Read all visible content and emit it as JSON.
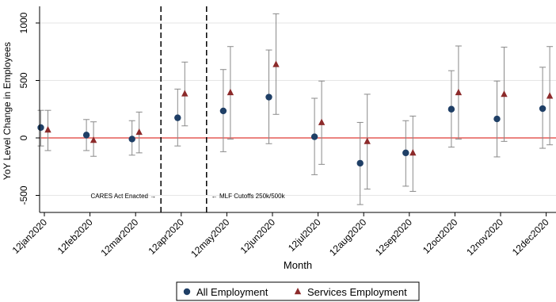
{
  "chart_data": {
    "type": "scatter",
    "xlabel": "Month",
    "ylabel": "YoY Level Change in Employees",
    "categories": [
      "12jan2020",
      "12feb2020",
      "12mar2020",
      "12apr2020",
      "12may2020",
      "12jun2020",
      "12jul2020",
      "12aug2020",
      "12sep2020",
      "12oct2020",
      "12nov2020",
      "12dec2020"
    ],
    "yticks": [
      1000,
      500,
      0,
      -500
    ],
    "ytick_labels": [
      "1000",
      "500",
      "0",
      "-500"
    ],
    "ylim": [
      -600,
      1130
    ],
    "grid": true,
    "legend_position": "bottom",
    "zero_line": {
      "value": 0,
      "color": "#e8726e"
    },
    "series": [
      {
        "name": "All Employment",
        "marker": "circle",
        "color": "#1f3f66",
        "values": [
          90,
          25,
          -10,
          175,
          235,
          355,
          10,
          -220,
          -130,
          250,
          165,
          255
        ],
        "ci_low": [
          -70,
          -110,
          -150,
          -70,
          -120,
          -50,
          -320,
          -580,
          -420,
          -80,
          -165,
          -90
        ],
        "ci_high": [
          240,
          160,
          150,
          425,
          595,
          765,
          345,
          135,
          150,
          585,
          495,
          615
        ]
      },
      {
        "name": "Services Employment",
        "marker": "triangle",
        "color": "#8c2a2a",
        "values": [
          70,
          -20,
          50,
          385,
          395,
          640,
          135,
          -30,
          -130,
          395,
          380,
          365
        ],
        "ci_low": [
          -110,
          -160,
          -130,
          105,
          -10,
          205,
          -230,
          -445,
          -465,
          -10,
          -30,
          -60
        ],
        "ci_high": [
          240,
          140,
          225,
          660,
          795,
          1080,
          495,
          380,
          190,
          800,
          790,
          795
        ]
      }
    ],
    "vertical_lines": [
      {
        "after_category": "12mar2020",
        "label": "CARES Act Enacted →",
        "label_side": "left"
      },
      {
        "after_category": "12apr2020",
        "label": "← MLF Cutoffs 250k/500k",
        "label_side": "right"
      }
    ]
  }
}
